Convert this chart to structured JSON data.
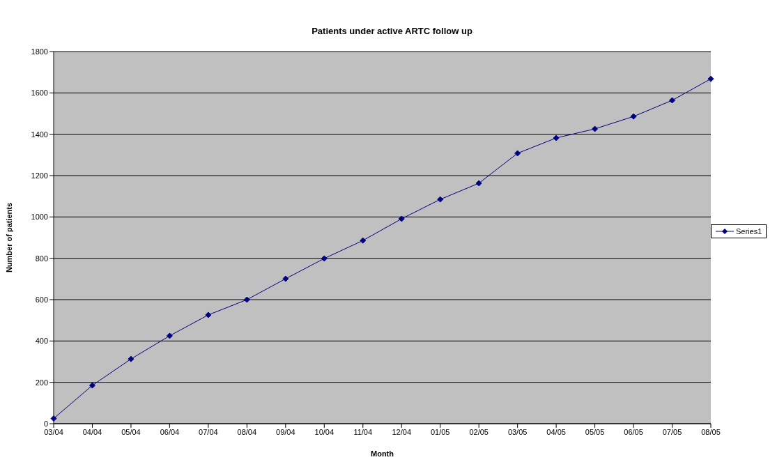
{
  "chart_data": {
    "type": "line",
    "title": "Patients under active ARTC follow up",
    "xlabel": "Month",
    "ylabel": "Number of patients",
    "categories": [
      "03/04",
      "04/04",
      "05/04",
      "06/04",
      "07/04",
      "08/04",
      "09/04",
      "10/04",
      "11/04",
      "12/04",
      "01/05",
      "02/05",
      "03/05",
      "04/05",
      "05/05",
      "06/05",
      "07/05",
      "08/05"
    ],
    "series": [
      {
        "name": "Series1",
        "color": "#000080",
        "values": [
          25,
          185,
          313,
          425,
          526,
          600,
          701,
          799,
          886,
          991,
          1085,
          1163,
          1308,
          1382,
          1426,
          1486,
          1564,
          1668
        ]
      }
    ],
    "ylim": [
      0,
      1800
    ],
    "yticks": [
      0,
      200,
      400,
      600,
      800,
      1000,
      1200,
      1400,
      1600,
      1800
    ],
    "grid": "y",
    "legend": "right",
    "marker": "diamond",
    "line_style": "solid"
  }
}
